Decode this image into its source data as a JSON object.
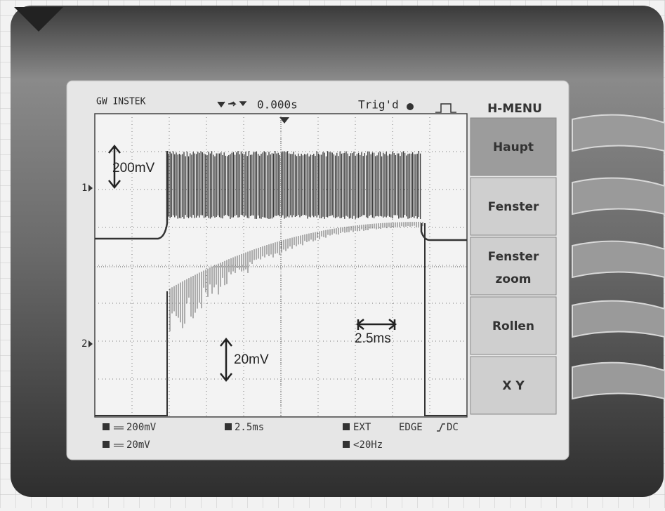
{
  "header": {
    "brand": "GW INSTEK",
    "time_position": "0.000s",
    "trigger_status": "Trig'd",
    "menu_title": "H-MENU"
  },
  "menu": [
    "Haupt",
    "Fenster",
    "Fenster zoom",
    "Rollen",
    "X Y"
  ],
  "channel_markers": [
    "1",
    "2"
  ],
  "annotations": {
    "ch1_scale": "200mV",
    "ch2_scale": "20mV",
    "time_scale": "2.5ms"
  },
  "status": {
    "ch1_volts": "200mV",
    "ch2_volts": "20mV",
    "timebase": "2.5ms",
    "trigger_source": "EXT",
    "trigger_type": "EDGE",
    "coupling": "DC",
    "frequency": "<20Hz"
  }
}
